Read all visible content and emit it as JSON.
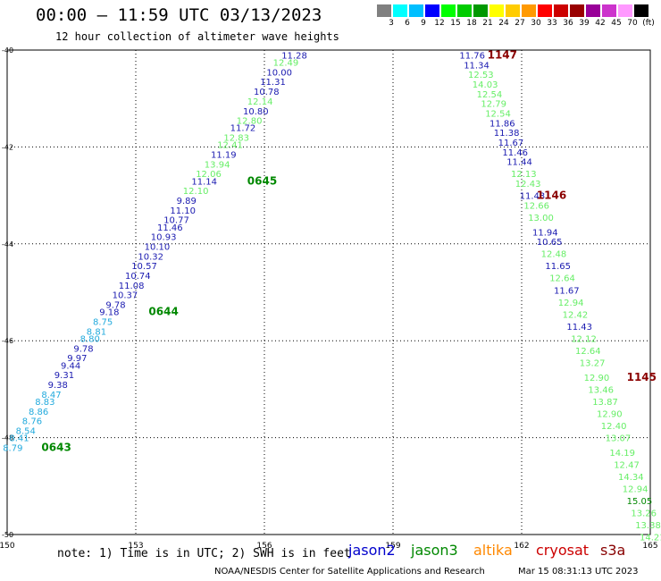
{
  "header": {
    "title": "00:00 – 11:59 UTC 03/13/2023",
    "subtitle": "12 hour collection of altimeter wave heights"
  },
  "scale": {
    "labels": [
      "3",
      "6",
      "9",
      "12",
      "15",
      "18",
      "21",
      "24",
      "27",
      "30",
      "33",
      "36",
      "39",
      "42",
      "45",
      "70",
      "(ft)"
    ],
    "colors": [
      "#808080",
      "#00ffff",
      "#00bfff",
      "#0000ff",
      "#00ff00",
      "#00cc00",
      "#009900",
      "#ffff00",
      "#ffcc00",
      "#ff9900",
      "#ff0000",
      "#cc0000",
      "#990000",
      "#990099",
      "#cc33cc",
      "#ff99ff",
      "#000000"
    ]
  },
  "footer": {
    "note": "note:  1) Time is in UTC; 2) SWH is in feet",
    "satellites": [
      {
        "name": "jason2",
        "color": "#0000cc"
      },
      {
        "name": "jason3",
        "color": "#008800"
      },
      {
        "name": "altika",
        "color": "#ff8800"
      },
      {
        "name": "cryosat",
        "color": "#cc0000"
      },
      {
        "name": "s3a",
        "color": "#880000"
      }
    ],
    "credit": "NOAA/NESDIS Center for Satellite Applications and Research",
    "timestamp": "Mar 15 08:31:13 UTC 2023"
  },
  "chart_data": {
    "type": "scatter",
    "xlim": [
      150,
      165
    ],
    "ylim": [
      -50,
      -40
    ],
    "x_ticks": [
      "150",
      "153",
      "156",
      "159",
      "162",
      "165"
    ],
    "y_ticks": [
      "-40",
      "-42",
      "-44",
      "-46",
      "-48",
      "-50"
    ],
    "grid": true,
    "colors": {
      "navy": "#1a1ab0",
      "green": "#66ee66",
      "sky": "#22aadd",
      "darkgreen": "#008800",
      "darkred": "#8b0000"
    },
    "points": [
      {
        "x": 156.4,
        "y": -40.1,
        "v": "11.28",
        "c": "navy"
      },
      {
        "x": 156.2,
        "y": -40.25,
        "v": "12.49",
        "c": "green"
      },
      {
        "x": 156.05,
        "y": -40.45,
        "v": "10.00",
        "c": "navy"
      },
      {
        "x": 155.9,
        "y": -40.65,
        "v": "11.31",
        "c": "navy"
      },
      {
        "x": 155.75,
        "y": -40.85,
        "v": "10.78",
        "c": "navy"
      },
      {
        "x": 155.6,
        "y": -41.05,
        "v": "12.14",
        "c": "green"
      },
      {
        "x": 155.5,
        "y": -41.25,
        "v": "10.80",
        "c": "navy"
      },
      {
        "x": 155.35,
        "y": -41.45,
        "v": "12.80",
        "c": "green"
      },
      {
        "x": 155.2,
        "y": -41.6,
        "v": "11.72",
        "c": "navy"
      },
      {
        "x": 155.05,
        "y": -41.8,
        "v": "12.83",
        "c": "green"
      },
      {
        "x": 154.9,
        "y": -41.95,
        "v": "12.41",
        "c": "green"
      },
      {
        "x": 154.75,
        "y": -42.15,
        "v": "11.19",
        "c": "navy"
      },
      {
        "x": 154.6,
        "y": -42.35,
        "v": "13.94",
        "c": "green"
      },
      {
        "x": 154.4,
        "y": -42.55,
        "v": "12.06",
        "c": "green"
      },
      {
        "x": 154.3,
        "y": -42.7,
        "v": "11.14",
        "c": "navy"
      },
      {
        "x": 154.1,
        "y": -42.9,
        "v": "12.10",
        "c": "green"
      },
      {
        "x": 153.95,
        "y": -43.1,
        "v": "9.89",
        "c": "navy"
      },
      {
        "x": 153.8,
        "y": -43.3,
        "v": "11.10",
        "c": "navy"
      },
      {
        "x": 153.65,
        "y": -43.5,
        "v": "10.77",
        "c": "navy"
      },
      {
        "x": 153.5,
        "y": -43.65,
        "v": "11.46",
        "c": "navy"
      },
      {
        "x": 153.35,
        "y": -43.85,
        "v": "10.93",
        "c": "navy"
      },
      {
        "x": 153.2,
        "y": -44.05,
        "v": "10.10",
        "c": "navy"
      },
      {
        "x": 153.05,
        "y": -44.25,
        "v": "10.32",
        "c": "navy"
      },
      {
        "x": 152.9,
        "y": -44.45,
        "v": "10.57",
        "c": "navy"
      },
      {
        "x": 152.75,
        "y": -44.65,
        "v": "10.74",
        "c": "navy"
      },
      {
        "x": 152.6,
        "y": -44.85,
        "v": "11.08",
        "c": "navy"
      },
      {
        "x": 152.45,
        "y": -45.05,
        "v": "10.37",
        "c": "navy"
      },
      {
        "x": 152.3,
        "y": -45.25,
        "v": "9.78",
        "c": "navy"
      },
      {
        "x": 152.15,
        "y": -45.4,
        "v": "9.18",
        "c": "navy"
      },
      {
        "x": 152.0,
        "y": -45.6,
        "v": "8.75",
        "c": "sky"
      },
      {
        "x": 151.85,
        "y": -45.8,
        "v": "8.81",
        "c": "sky"
      },
      {
        "x": 151.7,
        "y": -45.95,
        "v": "8.80",
        "c": "sky"
      },
      {
        "x": 151.55,
        "y": -46.15,
        "v": "9.78",
        "c": "navy"
      },
      {
        "x": 151.4,
        "y": -46.35,
        "v": "9.97",
        "c": "navy"
      },
      {
        "x": 151.25,
        "y": -46.5,
        "v": "9.44",
        "c": "navy"
      },
      {
        "x": 151.1,
        "y": -46.7,
        "v": "9.31",
        "c": "navy"
      },
      {
        "x": 150.95,
        "y": -46.9,
        "v": "9.38",
        "c": "navy"
      },
      {
        "x": 150.8,
        "y": -47.1,
        "v": "8.47",
        "c": "sky"
      },
      {
        "x": 150.65,
        "y": -47.25,
        "v": "8.83",
        "c": "sky"
      },
      {
        "x": 150.5,
        "y": -47.45,
        "v": "8.86",
        "c": "sky"
      },
      {
        "x": 150.35,
        "y": -47.65,
        "v": "8.76",
        "c": "sky"
      },
      {
        "x": 150.2,
        "y": -47.85,
        "v": "8.54",
        "c": "sky"
      },
      {
        "x": 150.05,
        "y": -48.0,
        "v": "8.41",
        "c": "sky"
      },
      {
        "x": 149.9,
        "y": -48.2,
        "v": "8.79",
        "c": "sky"
      },
      {
        "x": 160.55,
        "y": -40.1,
        "v": "11.76",
        "c": "navy"
      },
      {
        "x": 160.65,
        "y": -40.3,
        "v": "11.34",
        "c": "navy"
      },
      {
        "x": 160.75,
        "y": -40.5,
        "v": "12.53",
        "c": "green"
      },
      {
        "x": 160.85,
        "y": -40.7,
        "v": "14.03",
        "c": "green"
      },
      {
        "x": 160.95,
        "y": -40.9,
        "v": "12.54",
        "c": "green"
      },
      {
        "x": 161.05,
        "y": -41.1,
        "v": "12.79",
        "c": "green"
      },
      {
        "x": 161.15,
        "y": -41.3,
        "v": "12.54",
        "c": "green"
      },
      {
        "x": 161.25,
        "y": -41.5,
        "v": "11.86",
        "c": "navy"
      },
      {
        "x": 161.35,
        "y": -41.7,
        "v": "11.38",
        "c": "navy"
      },
      {
        "x": 161.45,
        "y": -41.9,
        "v": "11.67",
        "c": "navy"
      },
      {
        "x": 161.55,
        "y": -42.1,
        "v": "11.46",
        "c": "navy"
      },
      {
        "x": 161.65,
        "y": -42.3,
        "v": "11.44",
        "c": "navy"
      },
      {
        "x": 161.75,
        "y": -42.55,
        "v": "12.13",
        "c": "green"
      },
      {
        "x": 161.85,
        "y": -42.75,
        "v": "12.43",
        "c": "green"
      },
      {
        "x": 161.95,
        "y": -43.0,
        "v": "11.43",
        "c": "navy"
      },
      {
        "x": 162.05,
        "y": -43.2,
        "v": "12.66",
        "c": "green"
      },
      {
        "x": 162.15,
        "y": -43.45,
        "v": "13.00",
        "c": "green"
      },
      {
        "x": 162.25,
        "y": -43.75,
        "v": "11.94",
        "c": "navy"
      },
      {
        "x": 162.35,
        "y": -43.95,
        "v": "10.65",
        "c": "navy"
      },
      {
        "x": 162.45,
        "y": -44.2,
        "v": "12.48",
        "c": "green"
      },
      {
        "x": 162.55,
        "y": -44.45,
        "v": "11.65",
        "c": "navy"
      },
      {
        "x": 162.65,
        "y": -44.7,
        "v": "12.64",
        "c": "green"
      },
      {
        "x": 162.75,
        "y": -44.95,
        "v": "11.67",
        "c": "navy"
      },
      {
        "x": 162.85,
        "y": -45.2,
        "v": "12.94",
        "c": "green"
      },
      {
        "x": 162.95,
        "y": -45.45,
        "v": "12.42",
        "c": "green"
      },
      {
        "x": 163.05,
        "y": -45.7,
        "v": "11.43",
        "c": "navy"
      },
      {
        "x": 163.15,
        "y": -45.95,
        "v": "12.12",
        "c": "green"
      },
      {
        "x": 163.25,
        "y": -46.2,
        "v": "12.64",
        "c": "green"
      },
      {
        "x": 163.35,
        "y": -46.45,
        "v": "13.27",
        "c": "green"
      },
      {
        "x": 163.45,
        "y": -46.75,
        "v": "12.90",
        "c": "green"
      },
      {
        "x": 163.55,
        "y": -47.0,
        "v": "13.46",
        "c": "green"
      },
      {
        "x": 163.65,
        "y": -47.25,
        "v": "13.87",
        "c": "green"
      },
      {
        "x": 163.75,
        "y": -47.5,
        "v": "12.90",
        "c": "green"
      },
      {
        "x": 163.85,
        "y": -47.75,
        "v": "12.40",
        "c": "green"
      },
      {
        "x": 163.95,
        "y": -48.0,
        "v": "13.07",
        "c": "green"
      },
      {
        "x": 164.05,
        "y": -48.3,
        "v": "14.19",
        "c": "green"
      },
      {
        "x": 164.15,
        "y": -48.55,
        "v": "12.47",
        "c": "green"
      },
      {
        "x": 164.25,
        "y": -48.8,
        "v": "14.34",
        "c": "green"
      },
      {
        "x": 164.35,
        "y": -49.05,
        "v": "12.94",
        "c": "green"
      },
      {
        "x": 164.45,
        "y": -49.3,
        "v": "15.05",
        "c": "darkgreen"
      },
      {
        "x": 164.55,
        "y": -49.55,
        "v": "13.26",
        "c": "green"
      },
      {
        "x": 164.65,
        "y": -49.8,
        "v": "13.38",
        "c": "green"
      },
      {
        "x": 164.75,
        "y": -50.05,
        "v": "14.21",
        "c": "green"
      }
    ],
    "time_labels": [
      {
        "x": 155.6,
        "y": -42.7,
        "v": "0645",
        "c": "darkgreen"
      },
      {
        "x": 153.3,
        "y": -45.4,
        "v": "0644",
        "c": "darkgreen"
      },
      {
        "x": 150.8,
        "y": -48.2,
        "v": "0643",
        "c": "darkgreen"
      },
      {
        "x": 161.2,
        "y": -40.1,
        "v": "1147",
        "c": "darkred"
      },
      {
        "x": 162.35,
        "y": -43.0,
        "v": "1146",
        "c": "darkred"
      },
      {
        "x": 164.45,
        "y": -46.75,
        "v": "1145",
        "c": "darkred"
      }
    ]
  }
}
